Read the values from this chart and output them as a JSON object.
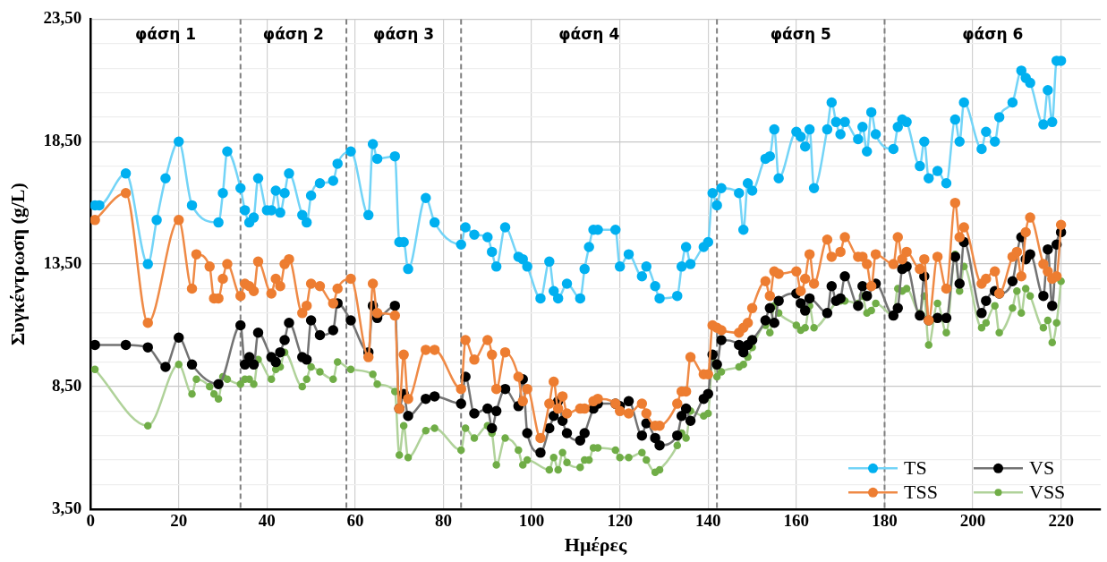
{
  "chart_data": {
    "type": "line",
    "xlabel": "Ημέρες",
    "ylabel": "Συγκέντρωση (g/L)",
    "xlim": [
      0,
      229
    ],
    "xticks": [
      0,
      20,
      40,
      60,
      80,
      100,
      120,
      140,
      160,
      180,
      200,
      220
    ],
    "ylim": [
      3.5,
      23.5
    ],
    "yticks": [
      {
        "value": 3.5,
        "label": "3,50"
      },
      {
        "value": 4.5,
        "label": null
      },
      {
        "value": 5.5,
        "label": null
      },
      {
        "value": 6.5,
        "label": null
      },
      {
        "value": 7.5,
        "label": null
      },
      {
        "value": 8.5,
        "label": "8,50"
      },
      {
        "value": 9.5,
        "label": null
      },
      {
        "value": 10.5,
        "label": null
      },
      {
        "value": 11.5,
        "label": null
      },
      {
        "value": 12.5,
        "label": null
      },
      {
        "value": 13.5,
        "label": "13,50"
      },
      {
        "value": 14.5,
        "label": null
      },
      {
        "value": 15.5,
        "label": null
      },
      {
        "value": 16.5,
        "label": null
      },
      {
        "value": 17.5,
        "label": null
      },
      {
        "value": 18.5,
        "label": "18,50"
      },
      {
        "value": 19.5,
        "label": null
      },
      {
        "value": 20.5,
        "label": null
      },
      {
        "value": 21.5,
        "label": null
      },
      {
        "value": 22.5,
        "label": null
      },
      {
        "value": 23.5,
        "label": "23,50"
      }
    ],
    "grid": true,
    "legend": "bottom right",
    "marker": "circle",
    "line_style": "solid",
    "series": [
      {
        "name": "TS",
        "color": "#00b0f0",
        "x": [
          1,
          2,
          8,
          13,
          15,
          17,
          20,
          23,
          29,
          30,
          31,
          34,
          35,
          36,
          37,
          38,
          40,
          41,
          42,
          43,
          44,
          45,
          48,
          49,
          50,
          52,
          55,
          56,
          59,
          63,
          64,
          65,
          69,
          70,
          71,
          72,
          76,
          78,
          84,
          85,
          87,
          90,
          91,
          92,
          94,
          97,
          98,
          99,
          102,
          104,
          105,
          106,
          108,
          111,
          112,
          113,
          114,
          115,
          119,
          120,
          122,
          125,
          126,
          128,
          129,
          133,
          134,
          135,
          136,
          139,
          140,
          141,
          142,
          143,
          147,
          148,
          149,
          150,
          153,
          154,
          155,
          156,
          160,
          161,
          162,
          163,
          164,
          167,
          168,
          169,
          170,
          171,
          174,
          175,
          176,
          177,
          178,
          182,
          183,
          184,
          185,
          188,
          189,
          190,
          192,
          194,
          196,
          197,
          198,
          202,
          203,
          205,
          206,
          209,
          211,
          212,
          213,
          216,
          217,
          218,
          219,
          220
        ],
        "values": [
          15.9,
          15.9,
          17.2,
          13.5,
          15.3,
          17.0,
          18.5,
          15.9,
          15.2,
          16.4,
          18.1,
          16.6,
          15.7,
          15.2,
          15.4,
          17.0,
          15.7,
          15.7,
          16.5,
          15.6,
          16.4,
          17.2,
          15.5,
          15.2,
          16.3,
          16.8,
          16.9,
          17.6,
          18.1,
          15.5,
          18.4,
          17.8,
          17.9,
          14.4,
          14.4,
          13.3,
          16.2,
          15.2,
          14.3,
          15.0,
          14.7,
          14.6,
          14.0,
          13.4,
          15.0,
          13.8,
          13.7,
          13.4,
          12.1,
          13.6,
          12.4,
          12.1,
          12.7,
          12.1,
          13.3,
          14.2,
          14.9,
          14.9,
          14.9,
          13.4,
          13.9,
          13.0,
          13.4,
          12.6,
          12.1,
          12.2,
          13.4,
          14.2,
          13.5,
          14.2,
          14.4,
          16.4,
          15.9,
          16.6,
          16.4,
          14.9,
          16.8,
          16.5,
          17.8,
          17.9,
          19.0,
          17.0,
          18.9,
          18.7,
          18.3,
          19.0,
          16.6,
          19.0,
          20.1,
          19.3,
          18.8,
          19.3,
          18.6,
          19.1,
          18.1,
          19.7,
          18.8,
          18.2,
          19.1,
          19.4,
          19.3,
          17.5,
          18.5,
          17.0,
          17.3,
          16.8,
          19.4,
          18.5,
          20.1,
          18.2,
          18.9,
          18.5,
          19.5,
          20.1,
          21.4,
          21.1,
          20.9,
          19.2,
          20.6,
          19.3,
          21.8,
          21.8
        ]
      },
      {
        "name": "TSS",
        "color": "#ed7d31",
        "x": [
          1,
          8,
          13,
          20,
          23,
          24,
          27,
          28,
          29,
          30,
          31,
          34,
          35,
          36,
          37,
          38,
          41,
          42,
          43,
          44,
          45,
          48,
          49,
          50,
          52,
          55,
          56,
          59,
          63,
          64,
          65,
          69,
          70,
          71,
          72,
          76,
          78,
          84,
          85,
          87,
          90,
          91,
          92,
          94,
          97,
          98,
          99,
          102,
          104,
          105,
          106,
          107,
          108,
          111,
          112,
          114,
          115,
          119,
          120,
          122,
          125,
          126,
          128,
          129,
          133,
          134,
          135,
          136,
          139,
          140,
          141,
          142,
          143,
          147,
          148,
          149,
          150,
          153,
          154,
          155,
          156,
          160,
          161,
          162,
          163,
          164,
          167,
          168,
          170,
          171,
          174,
          175,
          176,
          177,
          178,
          182,
          183,
          184,
          185,
          188,
          189,
          190,
          192,
          194,
          196,
          197,
          198,
          202,
          203,
          205,
          206,
          209,
          210,
          211,
          212,
          213,
          216,
          217,
          218,
          219,
          220
        ],
        "values": [
          15.3,
          16.4,
          11.1,
          15.3,
          12.5,
          13.9,
          13.4,
          12.1,
          12.1,
          12.9,
          13.5,
          12.2,
          12.7,
          12.6,
          12.4,
          13.6,
          12.3,
          12.9,
          12.6,
          13.5,
          13.7,
          11.5,
          11.8,
          12.7,
          12.6,
          11.9,
          12.5,
          12.9,
          9.7,
          12.7,
          11.5,
          11.4,
          7.6,
          9.8,
          8.0,
          10.0,
          10.0,
          8.4,
          10.4,
          9.6,
          10.4,
          9.8,
          8.4,
          9.9,
          8.9,
          7.9,
          8.4,
          6.4,
          7.8,
          8.7,
          7.6,
          8.1,
          7.4,
          7.6,
          7.6,
          7.9,
          8.0,
          7.8,
          7.5,
          7.4,
          7.8,
          7.4,
          6.9,
          6.9,
          7.8,
          8.3,
          8.3,
          9.7,
          9.0,
          9.0,
          11.0,
          10.9,
          10.8,
          10.7,
          10.9,
          11.1,
          11.7,
          12.8,
          12.2,
          13.2,
          13.1,
          13.2,
          12.4,
          12.9,
          13.9,
          12.7,
          14.5,
          13.8,
          14.0,
          14.6,
          13.8,
          13.8,
          13.5,
          12.6,
          13.9,
          13.5,
          14.6,
          13.7,
          14.0,
          13.3,
          13.7,
          11.2,
          13.8,
          12.5,
          16.0,
          14.6,
          15.0,
          12.7,
          12.9,
          13.2,
          12.3,
          13.8,
          14.0,
          13.0,
          14.8,
          15.4,
          13.5,
          13.2,
          12.9,
          13.0,
          15.1
        ]
      },
      {
        "name": "VS",
        "color": "#000000",
        "x": [
          1,
          8,
          13,
          17,
          20,
          23,
          29,
          34,
          35,
          36,
          37,
          38,
          41,
          42,
          43,
          44,
          45,
          48,
          49,
          50,
          52,
          55,
          56,
          59,
          63,
          64,
          65,
          69,
          70,
          71,
          72,
          76,
          78,
          84,
          85,
          87,
          90,
          91,
          92,
          94,
          97,
          98,
          99,
          102,
          104,
          105,
          106,
          107,
          108,
          111,
          112,
          114,
          115,
          119,
          120,
          122,
          125,
          126,
          128,
          129,
          133,
          134,
          135,
          136,
          139,
          140,
          141,
          142,
          143,
          147,
          148,
          149,
          150,
          153,
          154,
          155,
          156,
          160,
          161,
          162,
          163,
          167,
          168,
          169,
          170,
          171,
          174,
          175,
          176,
          178,
          182,
          183,
          184,
          185,
          188,
          189,
          190,
          192,
          194,
          196,
          197,
          198,
          202,
          203,
          205,
          206,
          209,
          211,
          212,
          213,
          216,
          217,
          218,
          219,
          220
        ],
        "values": [
          10.2,
          10.2,
          10.1,
          9.3,
          10.5,
          9.4,
          8.6,
          11.0,
          9.4,
          9.7,
          9.4,
          10.7,
          9.7,
          9.5,
          9.9,
          10.4,
          11.1,
          9.7,
          9.6,
          11.2,
          10.6,
          10.8,
          11.9,
          11.2,
          9.9,
          11.8,
          11.3,
          11.8,
          7.6,
          8.2,
          7.3,
          8.0,
          8.1,
          7.8,
          8.9,
          7.4,
          7.6,
          6.8,
          7.5,
          8.4,
          7.7,
          8.8,
          6.6,
          5.8,
          6.8,
          7.3,
          7.9,
          7.1,
          6.6,
          6.3,
          6.6,
          7.6,
          7.8,
          7.8,
          7.7,
          7.9,
          6.5,
          7.0,
          6.4,
          6.1,
          6.5,
          7.3,
          7.6,
          7.1,
          8.0,
          8.2,
          9.8,
          9.4,
          10.4,
          10.2,
          9.9,
          10.2,
          10.4,
          11.2,
          11.7,
          11.1,
          12.0,
          12.3,
          11.9,
          11.6,
          12.1,
          11.5,
          12.6,
          12.0,
          12.1,
          13.0,
          11.8,
          12.6,
          12.2,
          12.7,
          11.4,
          11.7,
          13.3,
          13.4,
          11.4,
          13.0,
          11.2,
          11.3,
          11.3,
          13.8,
          12.7,
          14.4,
          11.5,
          12.0,
          12.4,
          12.3,
          12.8,
          14.6,
          13.7,
          13.9,
          12.2,
          14.1,
          11.8,
          14.3,
          14.8
        ]
      },
      {
        "name": "VSS",
        "color": "#70ad47",
        "x": [
          1,
          13,
          20,
          23,
          24,
          27,
          28,
          29,
          30,
          31,
          34,
          35,
          36,
          37,
          38,
          41,
          42,
          43,
          44,
          48,
          49,
          50,
          52,
          55,
          56,
          59,
          64,
          65,
          69,
          70,
          71,
          72,
          76,
          78,
          84,
          85,
          87,
          90,
          91,
          92,
          94,
          97,
          98,
          99,
          104,
          105,
          106,
          107,
          108,
          111,
          112,
          113,
          114,
          115,
          119,
          120,
          122,
          125,
          126,
          128,
          129,
          133,
          134,
          135,
          136,
          139,
          140,
          141,
          142,
          143,
          147,
          148,
          149,
          150,
          153,
          154,
          155,
          156,
          160,
          161,
          162,
          163,
          164,
          170,
          171,
          174,
          175,
          176,
          177,
          178,
          182,
          183,
          184,
          185,
          188,
          189,
          190,
          192,
          194,
          196,
          197,
          198,
          202,
          203,
          205,
          206,
          209,
          210,
          211,
          212,
          213,
          216,
          217,
          218,
          219,
          220
        ],
        "values": [
          9.2,
          6.9,
          9.4,
          8.2,
          8.8,
          8.5,
          8.2,
          8.0,
          8.9,
          8.8,
          8.6,
          8.8,
          8.8,
          8.6,
          9.6,
          8.8,
          9.2,
          9.3,
          9.9,
          8.5,
          8.8,
          9.3,
          9.1,
          8.8,
          9.5,
          9.2,
          9.0,
          8.6,
          8.3,
          5.7,
          6.9,
          5.6,
          6.7,
          6.8,
          5.9,
          6.8,
          6.4,
          6.9,
          6.6,
          5.3,
          6.4,
          5.9,
          5.3,
          5.5,
          5.1,
          5.6,
          5.1,
          5.8,
          5.4,
          5.2,
          5.5,
          5.5,
          6.0,
          6.0,
          5.9,
          5.6,
          5.6,
          5.8,
          5.5,
          5.0,
          5.1,
          6.1,
          6.6,
          6.4,
          7.5,
          7.3,
          7.4,
          9.6,
          8.9,
          9.1,
          9.3,
          9.4,
          9.7,
          10.1,
          11.0,
          10.7,
          11.8,
          11.5,
          11.0,
          10.8,
          10.9,
          11.8,
          10.9,
          12.0,
          12.0,
          11.9,
          12.2,
          11.5,
          11.6,
          11.9,
          11.4,
          12.5,
          12.4,
          12.5,
          11.5,
          12.2,
          10.2,
          11.9,
          10.7,
          13.9,
          12.4,
          13.4,
          10.9,
          11.1,
          11.8,
          10.7,
          11.7,
          12.4,
          11.5,
          12.5,
          12.2,
          10.9,
          11.2,
          10.3,
          11.1,
          12.8
        ]
      }
    ],
    "ref_lines": [
      {
        "axis": "x",
        "value": 34,
        "line_style": "dashed",
        "color": "#7f7f7f"
      },
      {
        "axis": "x",
        "value": 58,
        "line_style": "dashed",
        "color": "#7f7f7f"
      },
      {
        "axis": "x",
        "value": 84,
        "line_style": "dashed",
        "color": "#7f7f7f"
      },
      {
        "axis": "x",
        "value": 142,
        "line_style": "dashed",
        "color": "#7f7f7f"
      },
      {
        "axis": "x",
        "value": 180,
        "line_style": "dashed",
        "color": "#7f7f7f"
      }
    ],
    "annotations": [
      "φάση 1",
      "φάση 2",
      "φάση 3",
      "φάση 4",
      "φάση 5",
      "φάση 6"
    ]
  }
}
